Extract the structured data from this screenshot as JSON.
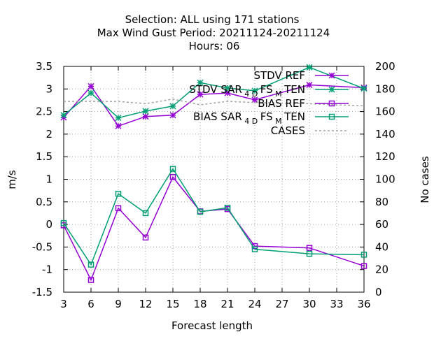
{
  "chart_data": {
    "type": "line",
    "title_lines": [
      "Selection: ALL using   171 stations",
      "Max Wind Gust   Period: 20211124-20211124",
      "Hours:  06"
    ],
    "xlabel": "Forecast length",
    "ylabel": "m/s",
    "y2label": "No cases",
    "xlim": [
      3,
      36
    ],
    "ylim": [
      -1.5,
      3.5
    ],
    "y2lim": [
      0,
      200
    ],
    "x_ticks": [
      3,
      6,
      9,
      12,
      15,
      18,
      21,
      24,
      27,
      30,
      33,
      36
    ],
    "y_ticks": [
      -1.5,
      -1,
      -0.5,
      0,
      0.5,
      1,
      1.5,
      2,
      2.5,
      3,
      3.5
    ],
    "y_tick_labels": [
      "-1.5",
      "-1",
      "-0.5",
      "0",
      "0.5",
      "1",
      "1.5",
      "2",
      "2.5",
      "3",
      "3.5"
    ],
    "y2_ticks": [
      0,
      20,
      40,
      60,
      80,
      100,
      120,
      140,
      160,
      180,
      200
    ],
    "grid": true,
    "legend_position": "top-right",
    "series": [
      {
        "name": "STDV REF",
        "axis": "y",
        "color": "#9400d3",
        "marker": "star",
        "x": [
          3,
          6,
          9,
          12,
          15,
          18,
          21,
          24,
          30,
          36
        ],
        "y": [
          2.37,
          3.06,
          2.18,
          2.39,
          2.42,
          2.88,
          2.91,
          2.76,
          3.09,
          3.03
        ]
      },
      {
        "name": "STDV SAR_4D_FS_M_TEN",
        "legend_main": "STDV SAR",
        "legend_sub": "4 D",
        "legend_mid": "FS",
        "legend_sub2": "M",
        "legend_end": "TEN",
        "axis": "y",
        "color": "#009e73",
        "marker": "star",
        "x": [
          3,
          6,
          9,
          12,
          15,
          18,
          21,
          24,
          30,
          36
        ],
        "y": [
          2.42,
          2.91,
          2.36,
          2.51,
          2.62,
          3.14,
          3.02,
          2.96,
          3.48,
          3.01
        ]
      },
      {
        "name": "BIAS REF",
        "axis": "y",
        "color": "#9400d3",
        "marker": "square",
        "x": [
          3,
          6,
          9,
          12,
          15,
          18,
          21,
          24,
          30,
          36
        ],
        "y": [
          -0.02,
          -1.23,
          0.36,
          -0.29,
          1.05,
          0.29,
          0.34,
          -0.48,
          -0.52,
          -0.92
        ]
      },
      {
        "name": "BIAS SAR_4D_FS_M_TEN",
        "legend_main": "BIAS SAR",
        "legend_sub": "4 D",
        "legend_mid": "FS",
        "legend_sub2": "M",
        "legend_end": "TEN",
        "axis": "y",
        "color": "#009e73",
        "marker": "square",
        "x": [
          3,
          6,
          9,
          12,
          15,
          18,
          21,
          24,
          30,
          36
        ],
        "y": [
          0.03,
          -0.89,
          0.68,
          0.25,
          1.23,
          0.28,
          0.37,
          -0.55,
          -0.65,
          -0.67
        ]
      },
      {
        "name": "CASES",
        "axis": "y2",
        "color": "#a0a0a0",
        "marker": "none",
        "dashed": true,
        "x": [
          3,
          6,
          9,
          12,
          15,
          18,
          21,
          24,
          30,
          36
        ],
        "y": [
          169,
          169,
          169,
          167,
          171,
          166,
          169,
          168,
          167,
          165
        ]
      }
    ]
  }
}
